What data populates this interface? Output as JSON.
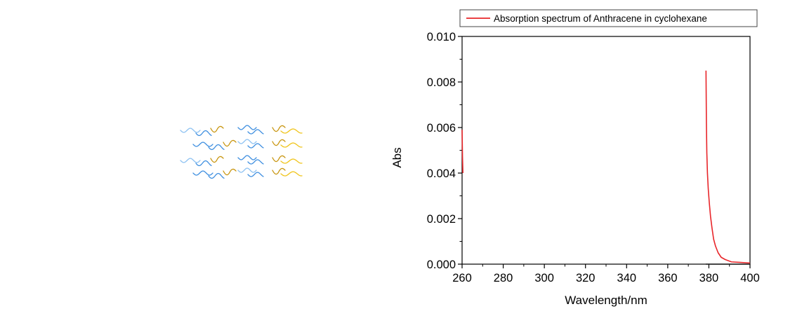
{
  "chart_data": {
    "type": "line",
    "title": "",
    "xlabel": "Wavelength/nm",
    "ylabel": "Abs",
    "xlim": [
      260,
      400
    ],
    "ylim": [
      0,
      0.01
    ],
    "x_ticks": [
      260,
      280,
      300,
      320,
      340,
      360,
      380,
      400
    ],
    "x_tick_labels": [
      "260",
      "280",
      "300",
      "320",
      "340",
      "360",
      "380",
      "400"
    ],
    "y_ticks": [
      0,
      0.002,
      0.004,
      0.006,
      0.008,
      0.01
    ],
    "y_tick_labels": [
      "0.000",
      "0.002",
      "0.004",
      "0.006",
      "0.008",
      "0.010"
    ],
    "grid": false,
    "legend_position": "top",
    "series": [
      {
        "name": "Absorption spectrum of Anthracene in cyclohexane",
        "color": "#e8262a",
        "segments": [
          [
            [
              260.0,
              0.0059
            ],
            [
              260.2,
              0.0047
            ],
            [
              260.4,
              0.004
            ]
          ],
          [
            [
              378.6,
              0.0085
            ],
            [
              378.8,
              0.0062
            ],
            [
              379.0,
              0.0049
            ],
            [
              379.3,
              0.004
            ],
            [
              379.7,
              0.0033
            ],
            [
              380.2,
              0.0027
            ],
            [
              380.8,
              0.0021
            ],
            [
              381.5,
              0.0016
            ],
            [
              382.3,
              0.0011
            ],
            [
              383.2,
              0.0008
            ],
            [
              384.5,
              0.0005
            ],
            [
              386.0,
              0.0003
            ],
            [
              388.0,
              0.0002
            ],
            [
              391.0,
              0.0001
            ],
            [
              395.0,
              8e-05
            ],
            [
              400.0,
              5e-05
            ]
          ]
        ]
      }
    ],
    "baseline": {
      "color": "#1a1a1a",
      "points": [
        [
          378.5,
          0.0
        ],
        [
          400.0,
          0.0
        ]
      ]
    }
  }
}
